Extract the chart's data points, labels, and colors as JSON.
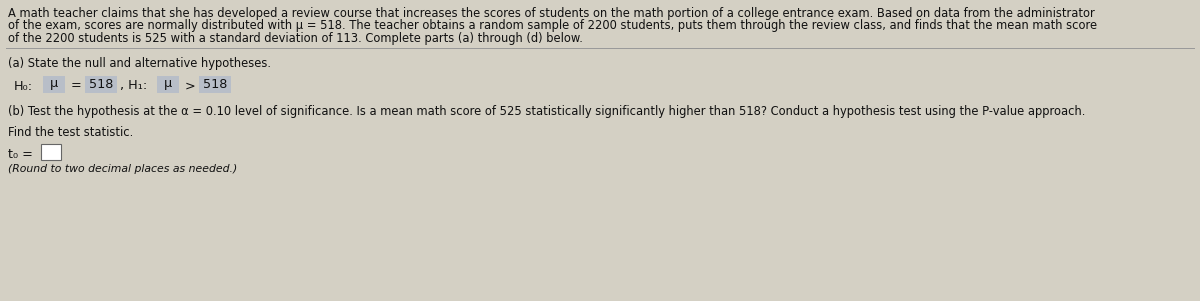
{
  "bg_color": "#d4d0c4",
  "text_color": "#111111",
  "highlight_color": "#b8bec8",
  "figsize": [
    12.0,
    3.01
  ],
  "dpi": 100,
  "para_lines": [
    "A math teacher claims that she has developed a review course that increases the scores of students on the math portion of a college entrance exam. Based on data from the administrator",
    "of the exam, scores are normally distributed with μ = 518. The teacher obtains a random sample of 2200 students, puts them through the review class, and finds that the mean math score",
    "of the 2200 students is 525 with a standard deviation of 113. Complete parts (a) through (d) below."
  ],
  "part_a_label": "(a) State the null and alternative hypotheses.",
  "part_b_label": "(b) Test the hypothesis at the α = 0.10 level of significance. Is a mean math score of 525 statistically significantly higher than 518? Conduct a hypothesis test using the P-value approach.",
  "find_stat": "Find the test statistic.",
  "round_note": "(Round to two decimal places as needed.)",
  "divider_color": "#999999",
  "box_color": "#b8bec8",
  "t0_box_color": "#ffffff",
  "t0_box_edge": "#666666"
}
